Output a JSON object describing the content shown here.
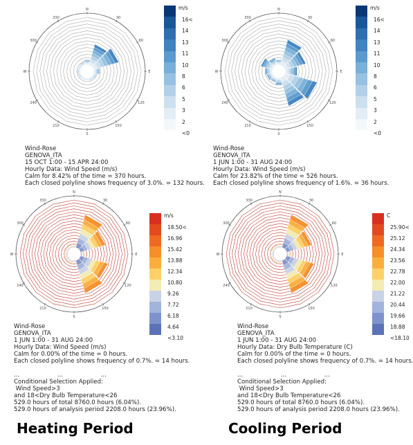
{
  "chart_data": [
    {
      "type": "wind-rose",
      "legend": {
        "unit": "m/s",
        "labels": [
          "16<",
          "14",
          "13",
          "11",
          "10",
          "8",
          "6",
          "5",
          "3",
          "2",
          "<0"
        ],
        "colors": [
          "#083775",
          "#1a5799",
          "#2f6fb1",
          "#3f83c1",
          "#5a9ace",
          "#79afd8",
          "#96c1e0",
          "#b2d1e8",
          "#cde0ef",
          "#e3edf6",
          "#f4f8fb"
        ]
      },
      "info": {
        "title": "Wind-Rose",
        "location": "GENOVA_ITA",
        "period": "15 OCT 1:00 - 15 APR 24:00",
        "data": "Hourly Data: Wind Speed (m/s)",
        "calm": "Calm for 8.42% of the time = 370 hours.",
        "polyline": "Each closed polyline shows frequency of 3.0%. = 132 hours."
      },
      "directions": [
        "N",
        "30",
        "60",
        "E",
        "120",
        "150",
        "S",
        "210",
        "240",
        "W",
        "300",
        "330"
      ],
      "frequencies": [
        0.1,
        0.45,
        0.55,
        0.12,
        0.06,
        0.05,
        0.04,
        0.04,
        0.05,
        0.06,
        0.05,
        0.06
      ]
    },
    {
      "type": "wind-rose",
      "legend": {
        "unit": "m/s",
        "labels": [
          "16<",
          "14",
          "13",
          "11",
          "10",
          "8",
          "6",
          "5",
          "3",
          "2",
          "<0"
        ],
        "colors": [
          "#083775",
          "#1a5799",
          "#2f6fb1",
          "#3f83c1",
          "#5a9ace",
          "#79afd8",
          "#96c1e0",
          "#b2d1e8",
          "#cde0ef",
          "#e3edf6",
          "#f4f8fb"
        ]
      },
      "info": {
        "title": "Wind-Rose",
        "location": "GENOVA_ITA",
        "period": "1 JUN 1:00 - 31 AUG 24:00",
        "data": "Hourly Data: Wind Speed (m/s)",
        "calm": "Calm for 23.82% of the time = 526 hours.",
        "polyline": "Each closed polyline shows frequency of 1.6%. = 36 hours."
      },
      "directions": [
        "N",
        "30",
        "60",
        "E",
        "120",
        "150",
        "S",
        "210",
        "240",
        "W",
        "300",
        "330"
      ],
      "frequencies": [
        0.1,
        0.55,
        0.45,
        0.25,
        0.7,
        0.62,
        0.15,
        0.1,
        0.12,
        0.15,
        0.25,
        0.15
      ]
    },
    {
      "type": "wind-rose",
      "legend": {
        "unit": "m/s",
        "labels": [
          "18.50<",
          "16.96",
          "15.42",
          "13.88",
          "12.34",
          "10.80",
          "9.26",
          "7.72",
          "6.18",
          "4.64",
          "<3.10"
        ],
        "colors": [
          "#d7301f",
          "#e34a1f",
          "#ef6a20",
          "#f68e2a",
          "#fbae3c",
          "#fdd167",
          "#f3ecb3",
          "#c9d3e7",
          "#a2b4db",
          "#7e93cc",
          "#5c72b8"
        ]
      },
      "info": {
        "title": "Wind-Rose",
        "location": "GENOVA_ITA",
        "period": "1 JUN 1:00 - 31 AUG 24:00",
        "data": "Hourly Data: Wind Speed (m/s)",
        "calm": "Calm for 0.00% of the time = 0 hours.",
        "polyline": "Each closed polyline shows frequency of 0.7%. = 14 hours."
      },
      "ellipsis": [
        "...",
        "...",
        "..."
      ],
      "selection": {
        "heading": "Conditional Selection Applied:",
        "line1": " Wind Speed>3",
        "line2": "and 18<Dry Bulb Temperature<26",
        "line3": "529.0 hours of total 8760.0 hours (6.04%).",
        "line4": "529.0 hours of analysis period 2208.0 hours (23.96%)."
      },
      "directions": [
        "N",
        "30",
        "60",
        "E",
        "120",
        "150",
        "S",
        "210",
        "240",
        "W",
        "300",
        "330"
      ],
      "frequencies": [
        0.06,
        0.72,
        0.55,
        0.08,
        0.6,
        0.72,
        0.06,
        0.05,
        0.05,
        0.06,
        0.05,
        0.05
      ]
    },
    {
      "type": "wind-rose",
      "legend": {
        "unit": "C",
        "labels": [
          "25.90<",
          "25.12",
          "24.34",
          "23.56",
          "22.78",
          "22.00",
          "21.22",
          "20.44",
          "19.66",
          "18.88",
          "<18.10"
        ],
        "colors": [
          "#d7301f",
          "#e34a1f",
          "#ef6a20",
          "#f68e2a",
          "#fbae3c",
          "#fdd167",
          "#f3ecb3",
          "#c9d3e7",
          "#a2b4db",
          "#7e93cc",
          "#5c72b8"
        ]
      },
      "info": {
        "title": "Wind-Rose",
        "location": "GENOVA_ITA",
        "period": "1 JUN 1:00 - 31 AUG 24:00",
        "data": "Hourly Data: Dry Bulb Temperature (C)",
        "calm": "Calm for 0.00% of the time = 0 hours.",
        "polyline": "Each closed polyline shows frequency of 0.7%. = 14 hours."
      },
      "ellipsis": [
        "...",
        "...",
        "..."
      ],
      "selection": {
        "heading": "Conditional Selection Applied:",
        "line1": " Wind Speed>3",
        "line2": "and 18<Dry Bulb Temperature<26",
        "line3": "529.0 hours of total 8760.0 hours (6.04%).",
        "line4": "529.0 hours of analysis period 2208.0 hours (23.96%)."
      },
      "directions": [
        "N",
        "30",
        "60",
        "E",
        "120",
        "150",
        "S",
        "210",
        "240",
        "W",
        "300",
        "330"
      ],
      "frequencies": [
        0.06,
        0.72,
        0.55,
        0.08,
        0.6,
        0.72,
        0.06,
        0.05,
        0.05,
        0.06,
        0.05,
        0.05
      ]
    }
  ],
  "footer": {
    "left": "Heating Period",
    "right": "Cooling Period"
  }
}
